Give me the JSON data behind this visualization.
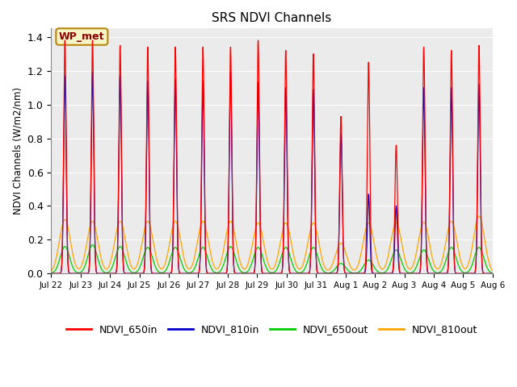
{
  "title": "SRS NDVI Channels",
  "ylabel": "NDVI Channels (W/m2/nm)",
  "ylim": [
    0.0,
    1.45
  ],
  "annotation_text": "WP_met",
  "annotation_color": "#8B0000",
  "annotation_bg": "#F5F5C8",
  "annotation_border": "#B8860B",
  "colors": {
    "NDVI_650in": "#FF0000",
    "NDVI_810in": "#0000CC",
    "NDVI_650out": "#00CC00",
    "NDVI_810out": "#FFA500"
  },
  "plot_bg": "#EBEBEB",
  "fig_bg": "#FFFFFF",
  "grid_color": "#FFFFFF",
  "n_days": 16,
  "samples_per_day": 200,
  "peak_650in": [
    1.38,
    1.38,
    1.35,
    1.34,
    1.34,
    1.34,
    1.34,
    1.38,
    1.32,
    1.3,
    0.93,
    1.25,
    0.76,
    1.34,
    1.32,
    1.35
  ],
  "peak_810in": [
    1.17,
    1.19,
    1.17,
    1.14,
    1.15,
    1.14,
    1.19,
    1.13,
    1.1,
    1.09,
    0.83,
    0.47,
    0.4,
    1.1,
    1.1,
    1.12
  ],
  "peak_650out": [
    0.16,
    0.17,
    0.16,
    0.155,
    0.155,
    0.155,
    0.16,
    0.155,
    0.155,
    0.155,
    0.06,
    0.08,
    0.14,
    0.14,
    0.155,
    0.155
  ],
  "peak_810out": [
    0.32,
    0.31,
    0.31,
    0.31,
    0.31,
    0.31,
    0.31,
    0.3,
    0.3,
    0.3,
    0.18,
    0.3,
    0.3,
    0.305,
    0.31,
    0.34
  ],
  "tick_labels": [
    "Jul 22",
    "Jul 23",
    "Jul 24",
    "Jul 25",
    "Jul 26",
    "Jul 27",
    "Jul 28",
    "Jul 29",
    "Jul 30",
    "Jul 31",
    "Aug 1",
    "Aug 2",
    "Aug 3",
    "Aug 4",
    "Aug 5",
    "Aug 6"
  ]
}
